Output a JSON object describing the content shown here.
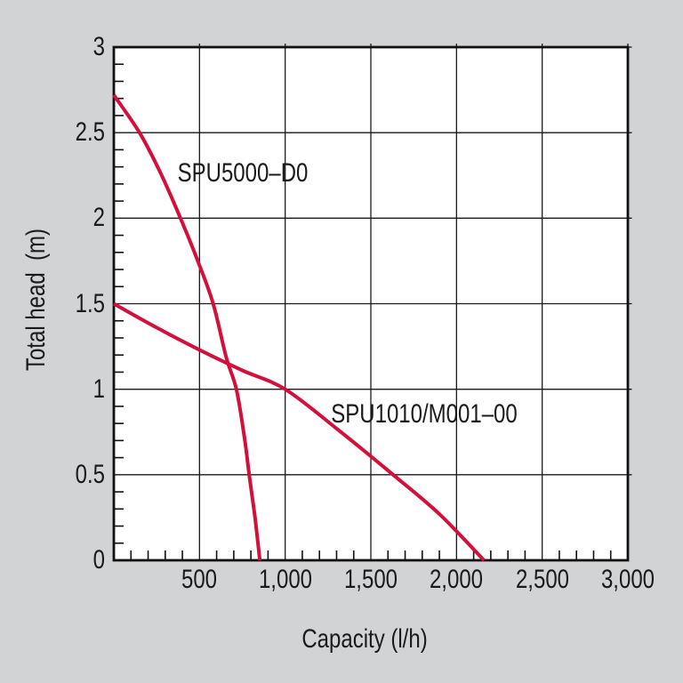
{
  "page": {
    "background_color": "#d2d3d5",
    "plot_background_color": "#ffffff",
    "axis_frame_color": "#111111",
    "gridline_color": "#1a1a1a",
    "text_color": "#1a1a1a"
  },
  "chart_data": {
    "type": "line",
    "title": "",
    "xlabel": "Capacity (l/h)",
    "ylabel": "Total head  (m)",
    "xlim": [
      0,
      3000
    ],
    "ylim": [
      0,
      3
    ],
    "x_major_ticks": [
      500,
      1000,
      1500,
      2000,
      2500,
      3000
    ],
    "x_tick_labels": [
      "500",
      "1,000",
      "1,500",
      "2,000",
      "2,500",
      "3,000"
    ],
    "x_minor_step": 100,
    "y_major_ticks": [
      0,
      0.5,
      1,
      1.5,
      2,
      2.5,
      3
    ],
    "y_tick_labels": [
      "0",
      "0.5",
      "1",
      "1.5",
      "2",
      "2.5",
      "3"
    ],
    "y_minor_step": 0.1,
    "grid": true,
    "legend": "inline-labels",
    "series": [
      {
        "name": "SPU5000–D0",
        "color": "#d40f3a",
        "points": [
          [
            0,
            2.72
          ],
          [
            150,
            2.5
          ],
          [
            270,
            2.27
          ],
          [
            389,
            2.0
          ],
          [
            490,
            1.75
          ],
          [
            580,
            1.5
          ],
          [
            655,
            1.19
          ],
          [
            715,
            1.0
          ],
          [
            762,
            0.72
          ],
          [
            790,
            0.5
          ],
          [
            825,
            0.24
          ],
          [
            852,
            0
          ]
        ],
        "label_at": [
          750,
          2.26
        ]
      },
      {
        "name": "SPU1010/M001–00",
        "color": "#d40f3a",
        "points": [
          [
            0,
            1.5
          ],
          [
            250,
            1.36
          ],
          [
            500,
            1.23
          ],
          [
            750,
            1.11
          ],
          [
            1000,
            1.0
          ],
          [
            1300,
            0.77
          ],
          [
            1630,
            0.5
          ],
          [
            1900,
            0.27
          ],
          [
            2160,
            0
          ]
        ],
        "label_at": [
          1810,
          0.855
        ]
      }
    ]
  }
}
